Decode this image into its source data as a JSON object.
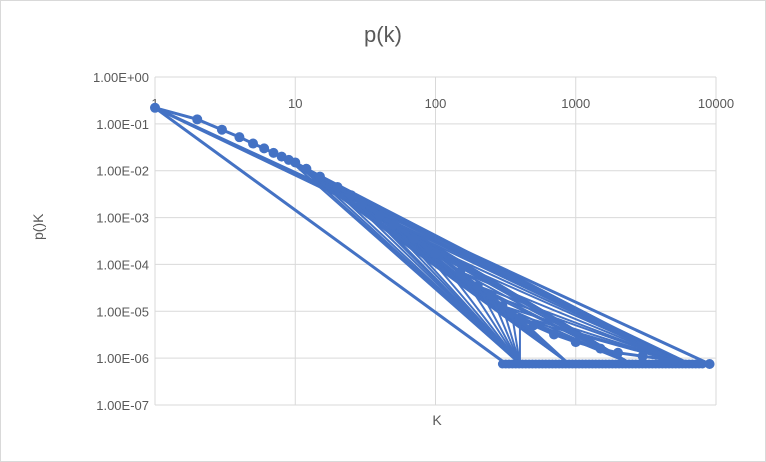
{
  "chart_data": {
    "type": "scatter",
    "title": "p(k)",
    "xlabel": "K",
    "ylabel": "p()K",
    "x_scale": "log",
    "y_scale": "log",
    "xlim": [
      1,
      10000
    ],
    "ylim": [
      1e-07,
      1
    ],
    "grid": "vertical-and-horizontal",
    "legend": "none",
    "x_tick_labels": [
      "1",
      "10",
      "100",
      "1000",
      "10000"
    ],
    "x_tick_values": [
      1,
      10,
      100,
      1000,
      10000
    ],
    "y_tick_labels": [
      "1.00E+00",
      "1.00E-01",
      "1.00E-02",
      "1.00E-03",
      "1.00E-04",
      "1.00E-05",
      "1.00E-06",
      "1.00E-07"
    ],
    "y_tick_values": [
      1,
      0.1,
      0.01,
      0.001,
      0.0001,
      1e-05,
      1e-06,
      1e-07
    ],
    "series": [
      {
        "color": "#4472c4",
        "connected": true,
        "points": [
          [
            1,
            0.22
          ],
          [
            2,
            0.125
          ],
          [
            3,
            0.075
          ],
          [
            4,
            0.052
          ],
          [
            5,
            0.038
          ],
          [
            6,
            0.03
          ],
          [
            7,
            0.024
          ],
          [
            8,
            0.02
          ],
          [
            9,
            0.017
          ],
          [
            10,
            0.015
          ],
          [
            12,
            0.011
          ],
          [
            15,
            0.0075
          ],
          [
            20,
            0.0045
          ],
          [
            25,
            0.003
          ],
          [
            30,
            0.002
          ],
          [
            40,
            0.0011
          ],
          [
            50,
            0.0007
          ],
          [
            70,
            0.00035
          ],
          [
            100,
            0.00017
          ],
          [
            150,
            7e-05
          ],
          [
            200,
            3.5e-05
          ],
          [
            250,
            2.2e-05
          ],
          [
            300,
            1.3e-05
          ],
          [
            350,
            9e-06
          ],
          [
            400,
            7e-06
          ],
          [
            500,
            5e-06
          ],
          [
            700,
            3.2e-06
          ],
          [
            1000,
            2.2e-06
          ],
          [
            1500,
            1.6e-06
          ],
          [
            2000,
            1.3e-06
          ],
          [
            3000,
            1.1e-06
          ],
          [
            5000,
            9e-07
          ],
          [
            9000,
            7.5e-07
          ]
        ]
      }
    ],
    "extra_lines_from_origin_point": [
      [
        1,
        0.22,
        9000,
        7.5e-07
      ],
      [
        1,
        0.22,
        320,
        7.5e-07
      ],
      [
        1,
        0.22,
        6500,
        7.5e-07
      ]
    ],
    "floor_scatter": {
      "y": 7.5e-07,
      "x_range": [
        300,
        8000
      ]
    }
  }
}
